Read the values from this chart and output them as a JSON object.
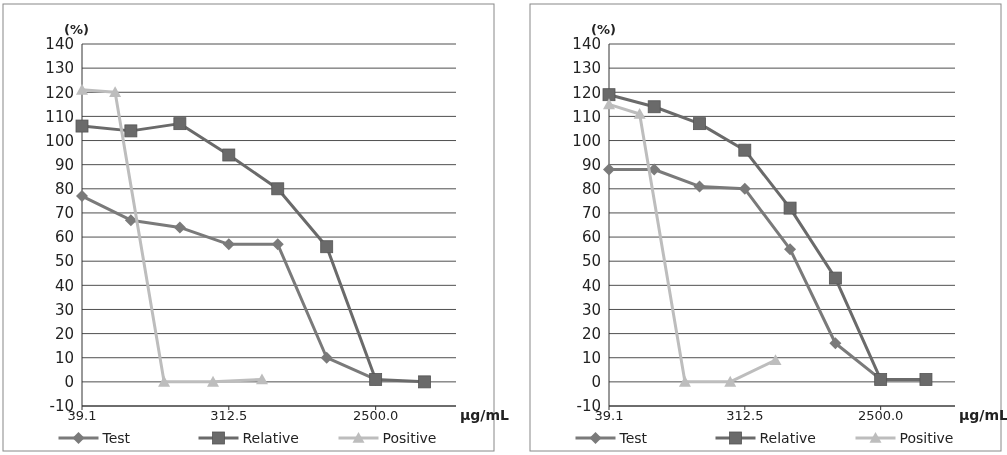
{
  "chart_data": [
    {
      "type": "line",
      "ylabel": "(%)",
      "xlabel": "µg/mL",
      "log": "x",
      "xlim": [
        39.1,
        7800
      ],
      "xticks": [
        {
          "value": 39.1,
          "label": "39.1"
        },
        {
          "value": 312.5,
          "label": "312.5"
        },
        {
          "value": 2500,
          "label": "2500.0"
        }
      ],
      "ylim": [
        -10,
        140
      ],
      "yticks": [
        -10,
        0,
        10,
        20,
        30,
        40,
        50,
        60,
        70,
        80,
        90,
        100,
        110,
        120,
        130,
        140
      ],
      "grid": "y",
      "legend": "bottom",
      "series": [
        {
          "name": "Test",
          "color": "#7a7a7a",
          "marker": "diamond",
          "x": [
            39.1,
            78.1,
            156.3,
            312.5,
            625,
            1250,
            2500
          ],
          "values": [
            77,
            67,
            64,
            57,
            57,
            10,
            1
          ]
        },
        {
          "name": "Relative",
          "color": "#6a6a6a",
          "marker": "square",
          "x": [
            39.1,
            78.1,
            156.3,
            312.5,
            625,
            1250,
            2500,
            5000
          ],
          "values": [
            106,
            104,
            107,
            94,
            80,
            56,
            1,
            0
          ]
        },
        {
          "name": "Positive",
          "color": "#bdbdbd",
          "marker": "triangle",
          "x": [
            39.1,
            62.5,
            125,
            250,
            500
          ],
          "values": [
            121,
            120,
            0,
            0,
            1
          ]
        }
      ]
    },
    {
      "type": "line",
      "ylabel": "(%)",
      "xlabel": "µg/mL",
      "log": "x",
      "xlim": [
        39.1,
        7800
      ],
      "xticks": [
        {
          "value": 39.1,
          "label": "39.1"
        },
        {
          "value": 312.5,
          "label": "312.5"
        },
        {
          "value": 2500,
          "label": "2500.0"
        }
      ],
      "ylim": [
        -10,
        140
      ],
      "yticks": [
        -10,
        0,
        10,
        20,
        30,
        40,
        50,
        60,
        70,
        80,
        90,
        100,
        110,
        120,
        130,
        140
      ],
      "grid": "y",
      "legend": "bottom",
      "series": [
        {
          "name": "Test",
          "color": "#7a7a7a",
          "marker": "diamond",
          "x": [
            39.1,
            78.1,
            156.3,
            312.5,
            625,
            1250,
            2500
          ],
          "values": [
            88,
            88,
            81,
            80,
            55,
            16,
            1
          ]
        },
        {
          "name": "Relative",
          "color": "#6a6a6a",
          "marker": "square",
          "x": [
            39.1,
            78.1,
            156.3,
            312.5,
            625,
            1250,
            2500,
            5000
          ],
          "values": [
            119,
            114,
            107,
            96,
            72,
            43,
            1,
            1
          ]
        },
        {
          "name": "Positive",
          "color": "#bdbdbd",
          "marker": "triangle",
          "x": [
            39.1,
            62.5,
            125,
            250,
            500
          ],
          "values": [
            115,
            111,
            0,
            0,
            9
          ]
        }
      ]
    }
  ]
}
